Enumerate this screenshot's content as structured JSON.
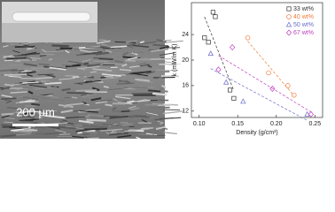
{
  "scale_bar": "200 μm",
  "chart_data": {
    "type": "scatter",
    "x_label": "Density (g/cm³)",
    "y_label": "k (mW/m K)",
    "xlim": [
      0.09,
      0.26
    ],
    "ylim": [
      11,
      29
    ],
    "xticks": [
      {
        "value": 0.1,
        "label": "0.10"
      },
      0.15,
      {
        "value": 0.2,
        "label": "0.20"
      },
      0.25
    ],
    "yticks": [
      12,
      16,
      20,
      24
    ],
    "legend": "top-right",
    "series": [
      {
        "name": "33 wt%",
        "color": "#333333",
        "marker": "square",
        "x": [
          0.118,
          0.121,
          0.107,
          0.112,
          0.14,
          0.145
        ],
        "values": [
          27.5,
          26.8,
          23.5,
          22.8,
          15.3,
          14.0
        ]
      },
      {
        "name": "40 wt%",
        "color": "#f07a3a",
        "marker": "circle",
        "x": [
          0.163,
          0.19,
          0.215,
          0.223
        ],
        "values": [
          23.5,
          18.0,
          16.0,
          14.5
        ]
      },
      {
        "name": "50 wt%",
        "color": "#6a6ac8",
        "marker": "triangle",
        "x": [
          0.115,
          0.135,
          0.157,
          0.24
        ],
        "values": [
          21.0,
          16.5,
          13.5,
          11.5
        ]
      },
      {
        "name": "67 wt%",
        "color": "#c03cc0",
        "marker": "diamond",
        "x": [
          0.125,
          0.143,
          0.195,
          0.245
        ],
        "values": [
          18.5,
          22.0,
          15.5,
          11.5
        ]
      }
    ]
  }
}
